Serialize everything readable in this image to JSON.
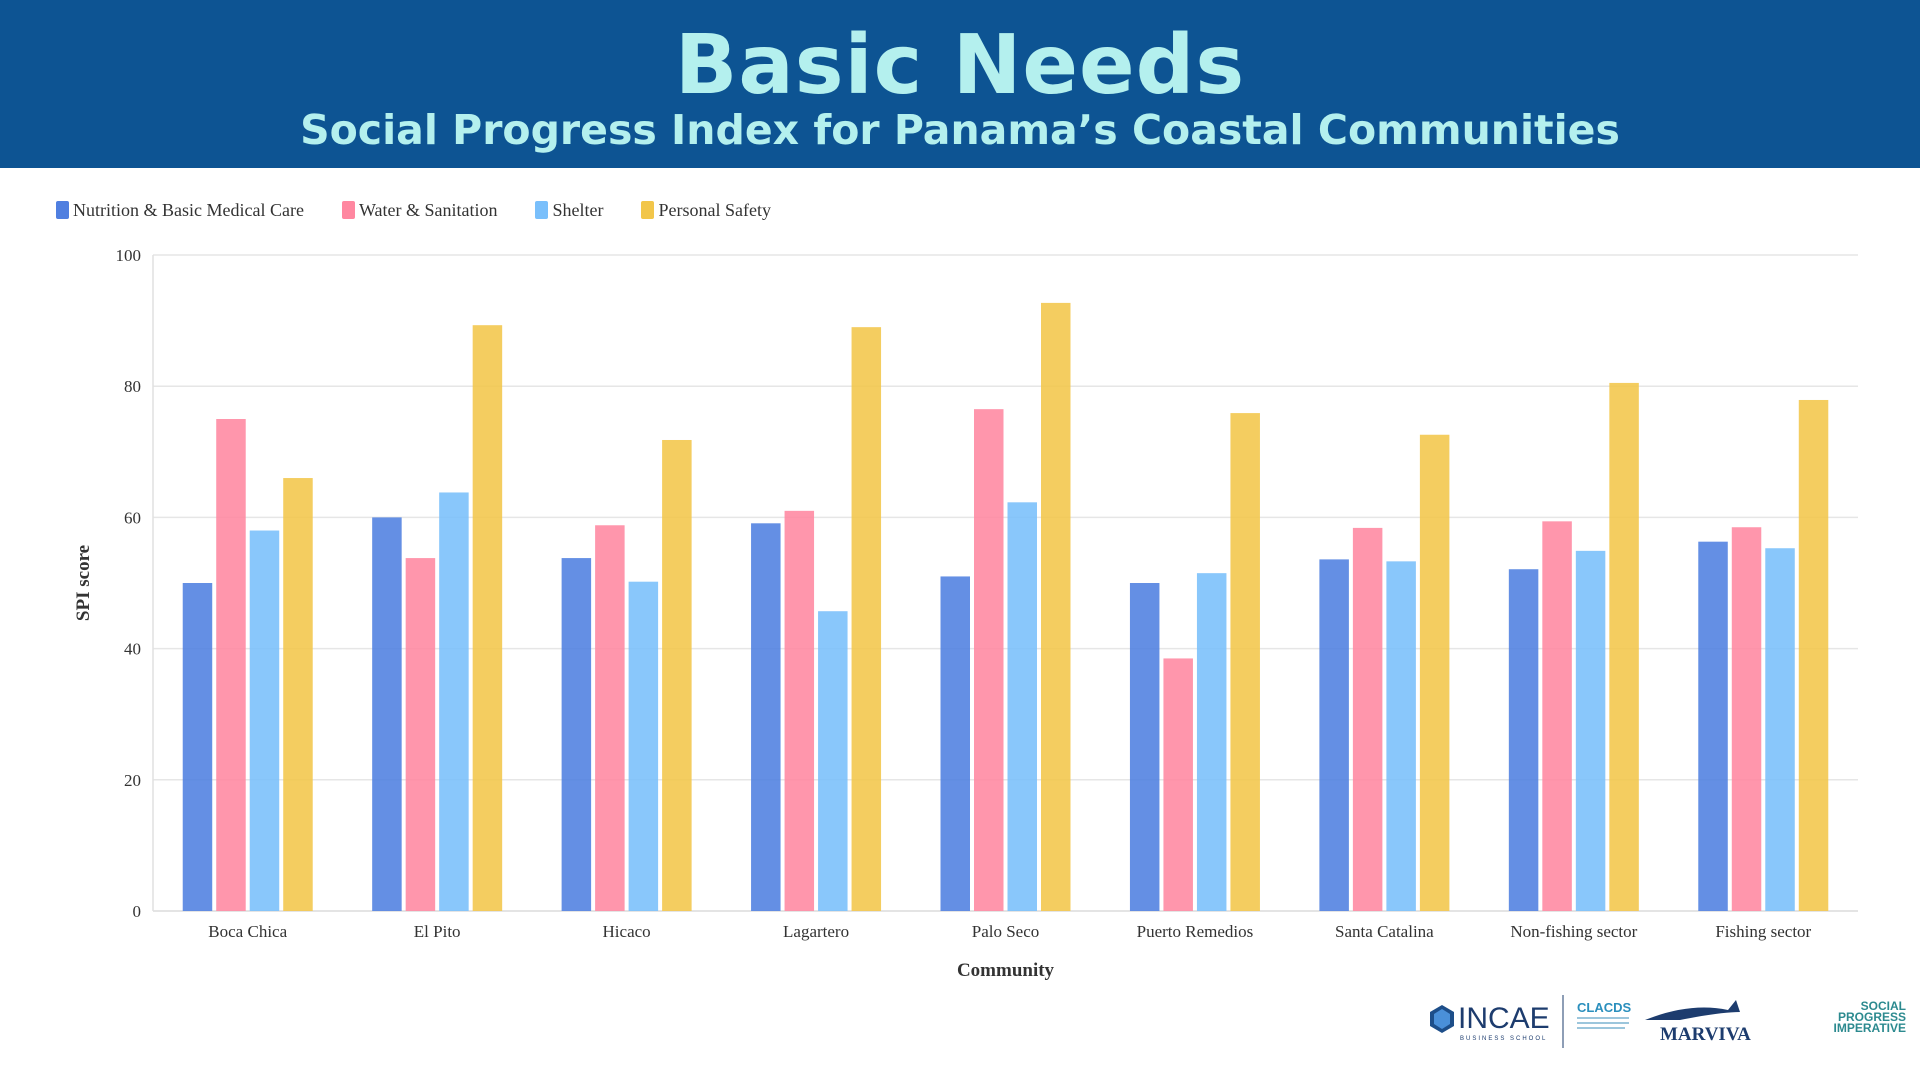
{
  "header": {
    "title": "Basic Needs",
    "subtitle": "Social Progress Index for Panama’s Coastal Communities"
  },
  "colors": {
    "banner_bg": "#0d5493",
    "title_text": "#b4f0ee"
  },
  "chart_data": {
    "type": "bar",
    "ylabel": "SPI score",
    "xlabel": "Community",
    "ylim": [
      0,
      100
    ],
    "yticks": [
      "0",
      "20",
      "40",
      "60",
      "80",
      "100"
    ],
    "grid": true,
    "legend_position": "top-left",
    "categories": [
      "Boca Chica",
      "El Pito",
      "Hicaco",
      "Lagartero",
      "Palo Seco",
      "Puerto Remedios",
      "Santa Catalina",
      "Non-fishing sector",
      "Fishing sector"
    ],
    "series": [
      {
        "name": "Nutrition & Basic Medical Care",
        "color": "#4f7fe0",
        "values": [
          50.0,
          60.0,
          53.8,
          59.1,
          51.0,
          50.0,
          53.6,
          52.1,
          56.3
        ]
      },
      {
        "name": "Water & Sanitation",
        "color": "#ff87a0",
        "values": [
          75.0,
          53.8,
          58.8,
          61.0,
          76.5,
          38.5,
          58.4,
          59.4,
          58.5
        ]
      },
      {
        "name": "Shelter",
        "color": "#79bffb",
        "values": [
          58.0,
          63.8,
          50.2,
          45.7,
          62.3,
          51.5,
          53.3,
          54.9,
          55.3
        ]
      },
      {
        "name": "Personal Safety",
        "color": "#f2c64a",
        "values": [
          66.0,
          89.3,
          71.8,
          89.0,
          92.7,
          75.9,
          72.6,
          80.5,
          77.9
        ]
      }
    ]
  },
  "logos": {
    "incae_name": "INCAE",
    "incae_sub": "BUSINESS SCHOOL",
    "clacds_name": "CLACDS",
    "marviva_name": "MARVIVA",
    "spi_name_line1": "SOCIAL",
    "spi_name_line2": "PROGRESS",
    "spi_name_line3": "IMPERATIVE"
  }
}
